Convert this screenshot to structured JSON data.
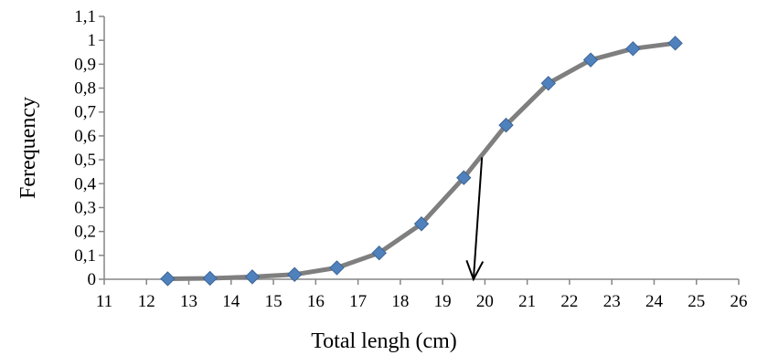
{
  "chart_data": {
    "type": "line",
    "title": "",
    "xlabel": "Total lengh (cm)",
    "ylabel": "Ferequency",
    "xlim": [
      11,
      26
    ],
    "ylim": [
      0,
      1.1
    ],
    "x_ticks": [
      "11",
      "12",
      "13",
      "14",
      "15",
      "16",
      "17",
      "18",
      "19",
      "20",
      "21",
      "22",
      "23",
      "24",
      "25",
      "26"
    ],
    "y_ticks": [
      "0",
      "0,1",
      "0,2",
      "0,3",
      "0,4",
      "0,5",
      "0,6",
      "0,7",
      "0,8",
      "0,9",
      "1",
      "1,1"
    ],
    "grid": false,
    "legend": "none",
    "series": [
      {
        "x": [
          12.5,
          13.5,
          14.5,
          15.5,
          16.5,
          17.5,
          18.5,
          19.5,
          20.5,
          21.5,
          22.5,
          23.5,
          24.5
        ],
        "values": [
          0.002,
          0.004,
          0.01,
          0.02,
          0.048,
          0.11,
          0.232,
          0.425,
          0.645,
          0.82,
          0.918,
          0.965,
          0.988
        ],
        "line_color": "#7f7f7f",
        "marker": "diamond",
        "marker_fill": "#4f81bd"
      }
    ],
    "annotations": [
      {
        "type": "arrow",
        "from": [
          19.93,
          0.51
        ],
        "to": [
          19.73,
          0.0
        ],
        "color": "#000000"
      }
    ]
  }
}
